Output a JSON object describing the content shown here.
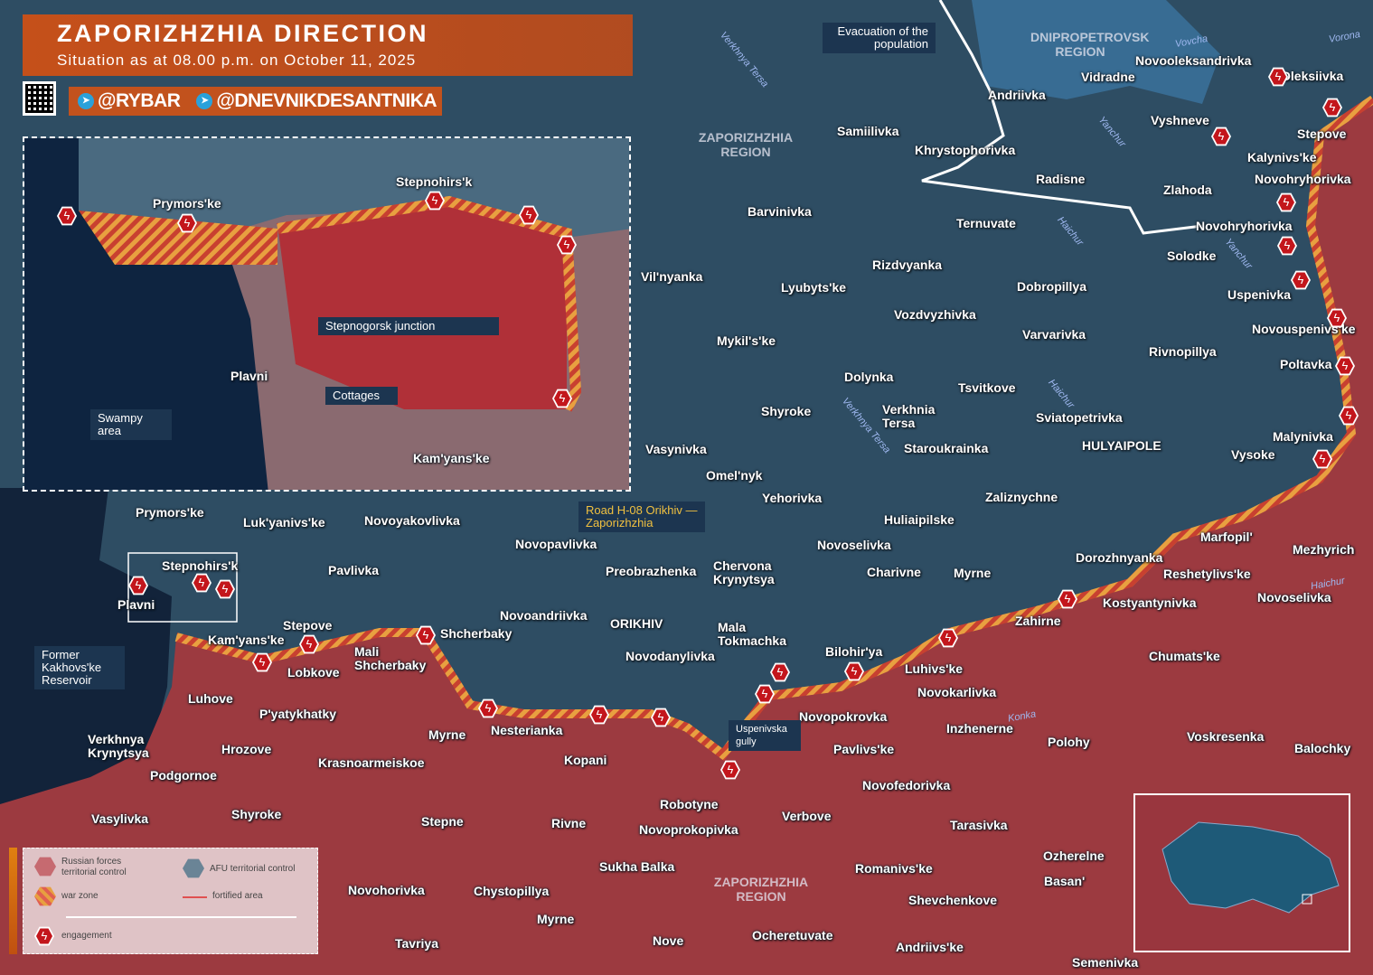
{
  "header": {
    "title": "ZAPORIZHZHIA DIRECTION",
    "subtitle": "Situation as at 08.00 p.m. on October 11, 2025",
    "social_1": "@RYBAR",
    "social_2": "@DNEVNIKDESANTNIKA"
  },
  "colors": {
    "russian_control": "#9c3a40",
    "afu_control": "#2e4d63",
    "war_zone": "#e8a040",
    "engagement": "#c3161c",
    "fortified": "#e05050",
    "water": "#12233a"
  },
  "legend": {
    "russian": "Russian forces territorial control",
    "afu": "AFU territorial control",
    "war_zone": "war zone",
    "fortified": "fortified area",
    "engagement": "engagement"
  },
  "regions": [
    "DNIPROPETROVSK REGION",
    "ZAPORIZHZHIA REGION",
    "ZAPORIZHZHIA REGION"
  ],
  "callouts": {
    "evacuation": "Evacuation of the population",
    "road": "Road H-08 Orikhiv — Zaporizhzhia",
    "reservoir": "Former Kakhovs'ke Reservoir",
    "gully": "Uspenivska gully",
    "junction": "Stepnogorsk junction",
    "cottages": "Cottages",
    "swampy": "Swampy area"
  },
  "rivers": [
    "Verkhnya Tersa",
    "Yanchur",
    "Haichur",
    "Vovcha",
    "Vorona",
    "Yanchur",
    "Haichur",
    "Verkhnya Tersa",
    "Konka",
    "Haichur"
  ],
  "settlements": [
    "Novooleksandrivka",
    "Vidradne",
    "Oleksiivka",
    "Andriivka",
    "Vyshneve",
    "Stepove",
    "Samiilivka",
    "Khrystophorivka",
    "Kalynivs'ke",
    "Novohryhorivka",
    "Radisne",
    "Zlahoda",
    "Barvinivka",
    "Ternuvate",
    "Novohryhorivka",
    "Solodke",
    "Rizdvyanka",
    "Vil'nyanka",
    "Lyubyts'ke",
    "Dobropillya",
    "Uspenivka",
    "Vozdvyzhivka",
    "Novouspenivs'ke",
    "Mykil's'ke",
    "Varvarivka",
    "Rivnopillya",
    "Poltavka",
    "Dolynka",
    "Tsvitkove",
    "Verkhnia Tersa",
    "Shyroke",
    "Sviatopetrivka",
    "Malynivka",
    "HULYAIPOLE",
    "Vasynivka",
    "Staroukrainka",
    "Vysoke",
    "Omel'nyk",
    "Yehorivka",
    "Zaliznychne",
    "Prymors'ke",
    "Luk'yanivs'ke",
    "Novoyakovlivka",
    "Huliaipilske",
    "Marfopil'",
    "Novopavlivka",
    "Novoselivka",
    "Mezhyrich",
    "Dorozhnyanka",
    "Stepnohirs'k",
    "Pavlivka",
    "Preobrazhenka",
    "Chervona Krynytsya",
    "Charivne",
    "Myrne",
    "Reshetylivs'ke",
    "Novoselivka",
    "Plavni",
    "Kostyantynivka",
    "Novoandriivka",
    "ORIKHIV",
    "Zahirne",
    "Stepove",
    "Mala Tokmachka",
    "Shcherbaky",
    "Kam'yans'ke",
    "Mali Shcherbaky",
    "Bilohir'ya",
    "Novodanylivka",
    "Chumats'ke",
    "Lobkove",
    "Luhivs'ke",
    "Novokarlivka",
    "Luhove",
    "P'yatykhatky",
    "Novopokrovka",
    "Inzhenerne",
    "Nesterianka",
    "Myrne",
    "Verkhnya Krynytsya",
    "Voskresenka",
    "Polohy",
    "Balochky",
    "Hrozove",
    "Pavlivs'ke",
    "Kopani",
    "Krasnoarmeiskoe",
    "Podgornoe",
    "Novofedorivka",
    "Robotyne",
    "Shyroke",
    "Verbove",
    "Vasylivka",
    "Stepne",
    "Rivne",
    "Tarasivka",
    "Novoprokopivka",
    "Ozherelne",
    "Sukha Balka",
    "Romanivs'ke",
    "Basan'",
    "Novohorivka",
    "Chystopillya",
    "Shevchenkove",
    "Myrne",
    "Ocheretuvate",
    "Tavriya",
    "Nove",
    "Andriivs'ke",
    "Semenivka"
  ],
  "inset_settlements": [
    "Prymors'ke",
    "Stepnohirs'k",
    "Plavni",
    "Kam'yans'ke"
  ]
}
